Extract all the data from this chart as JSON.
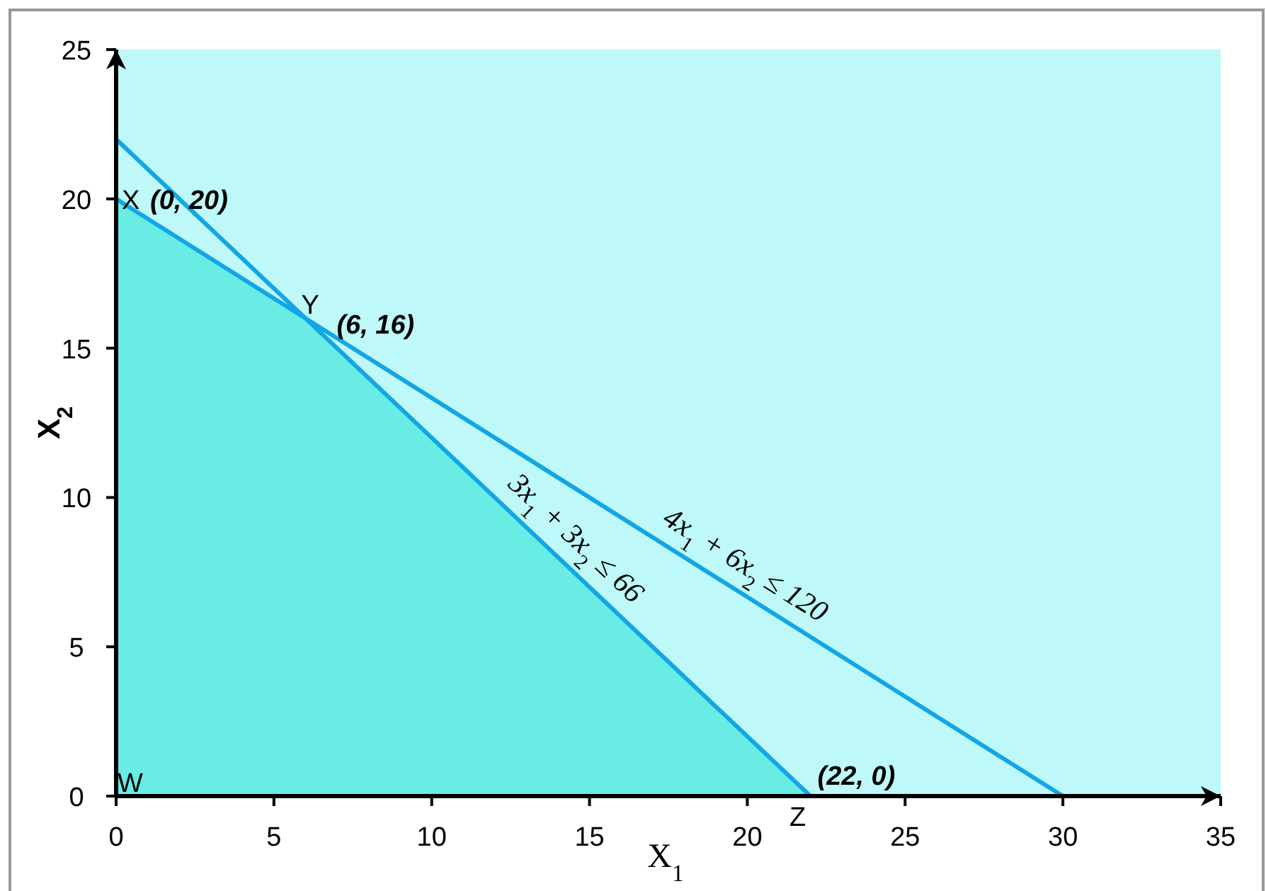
{
  "chart_data": {
    "type": "line",
    "xlabel": "X$_{1}$",
    "ylabel": "X$_{2}$",
    "xlim": [
      0,
      35
    ],
    "xticks": [
      0,
      5,
      10,
      15,
      20,
      25,
      30,
      35
    ],
    "ylim": [
      0,
      25
    ],
    "yticks": [
      0,
      5,
      10,
      15,
      20,
      25
    ],
    "grid": false,
    "marker": "none",
    "line_style": "solid",
    "series": [
      {
        "type": "area",
        "color": "#68ece4",
        "x": [
          0,
          6,
          22
        ],
        "values": [
          20,
          16,
          0
        ]
      },
      {
        "color": "#12a6e6",
        "x": [
          0,
          30
        ],
        "values": [
          20,
          0
        ]
      },
      {
        "color": "#12a6e6",
        "x": [
          0,
          22
        ],
        "values": [
          22,
          0
        ]
      }
    ],
    "annotations": [
      {
        "text": "X",
        "x": 0,
        "y": 20
      },
      {
        "text": "(0, 20)",
        "x": 0,
        "y": 20
      },
      {
        "text": "Y",
        "x": 6,
        "y": 16
      },
      {
        "text": "(6, 16)",
        "x": 6,
        "y": 16
      },
      {
        "text": "W",
        "x": 0,
        "y": 0
      },
      {
        "text": "Z",
        "x": 22,
        "y": 0
      },
      {
        "text": "(22, 0)",
        "x": 22,
        "y": 0
      },
      {
        "text": "3x$_{1}$ + 3x$_{2}$ ≤ 66",
        "x": 14,
        "y": 8
      },
      {
        "text": "4x$_{1}$ + 6x$_{2}$ ≤ 120",
        "x": 19.5,
        "y": 7
      }
    ]
  }
}
